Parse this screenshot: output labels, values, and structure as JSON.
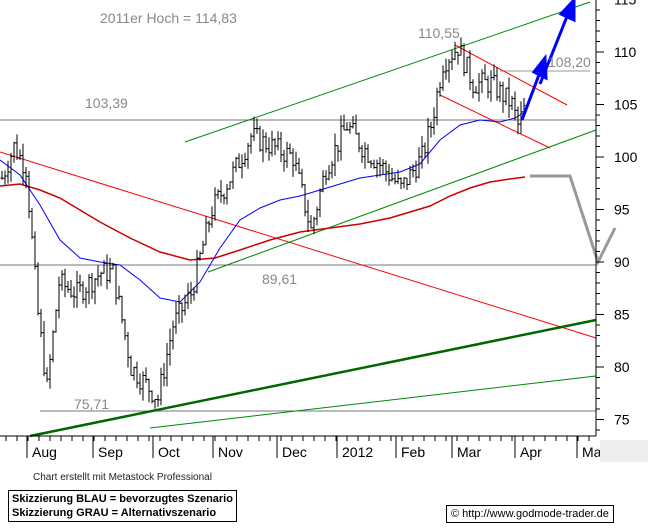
{
  "chart_data": {
    "type": "ohlc",
    "y_axis": {
      "min": 75,
      "max": 115,
      "ticks": [
        "75",
        "80",
        "85",
        "90",
        "95",
        "100",
        "105",
        "110",
        "115"
      ]
    },
    "x_axis": {
      "ticks": [
        "Aug",
        "Sep",
        "Oct",
        "Nov",
        "Dec",
        "2012",
        "Feb",
        "Mar",
        "Apr",
        "Ma"
      ]
    },
    "price_path": [
      [
        0,
        98
      ],
      [
        4,
        101
      ],
      [
        8,
        99
      ],
      [
        12,
        85
      ],
      [
        15,
        78
      ],
      [
        19,
        88
      ],
      [
        25,
        87
      ],
      [
        33,
        89
      ],
      [
        37,
        89
      ],
      [
        43,
        80
      ],
      [
        52,
        77
      ],
      [
        57,
        84
      ],
      [
        63,
        87
      ],
      [
        70,
        95
      ],
      [
        78,
        99
      ],
      [
        83,
        102
      ],
      [
        90,
        101
      ],
      [
        97,
        100
      ],
      [
        103,
        93
      ],
      [
        108,
        99
      ],
      [
        115,
        103
      ],
      [
        120,
        101
      ],
      [
        127,
        99
      ],
      [
        133,
        97
      ],
      [
        140,
        100
      ],
      [
        143,
        103
      ],
      [
        147,
        109
      ],
      [
        152,
        110.5
      ],
      [
        157,
        107
      ],
      [
        163,
        107
      ],
      [
        170,
        105
      ],
      [
        172,
        103
      ],
      [
        174,
        104.5
      ]
    ],
    "levels": [
      {
        "label": "103,39",
        "value": 103.39
      },
      {
        "label": "89,61",
        "value": 89.61
      },
      {
        "label": "75,71",
        "value": 75.71
      },
      {
        "label": "108,20",
        "value": 108.2
      },
      {
        "label": "110,55",
        "value": 110.55
      }
    ],
    "annotation_high": "2011er Hoch  =  114,83",
    "colors": {
      "price": "#000000",
      "ma_short": "#0000ff",
      "ma_long": "#cc0000",
      "trend_up": "#008000",
      "trend_down": "#ff0000",
      "scenario_main": "#0000ff",
      "scenario_alt": "#999999"
    }
  },
  "footer": {
    "credit": "Chart erstellt mit Metastock Professional",
    "legend_blue": "Skizzierung BLAU = bevorzugtes Szenario",
    "legend_gray": "Skizzierung GRAU = Alternativszenario",
    "source": "© http://www.godmode-trader.de"
  }
}
